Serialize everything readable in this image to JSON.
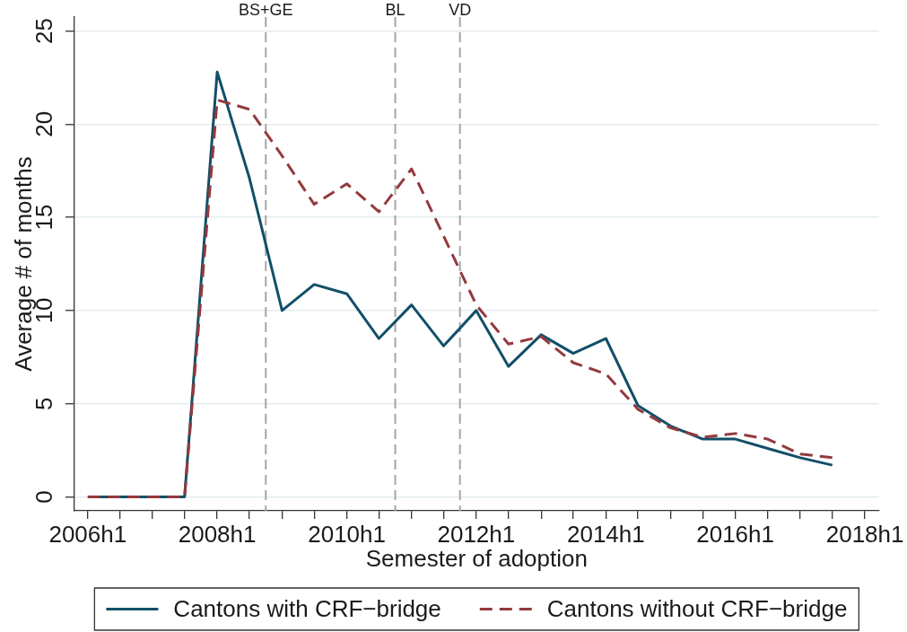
{
  "chart_data": {
    "type": "line",
    "xlabel": "Semester of adoption",
    "ylabel": "Average # of months",
    "x": [
      "2006-01",
      "2006-07",
      "2007-01",
      "2007-07",
      "2008-01",
      "2008-07",
      "2009-01",
      "2009-07",
      "2010-01",
      "2010-07",
      "2011-01",
      "2011-07",
      "2012-01",
      "2012-07",
      "2013-01",
      "2013-07",
      "2014-01",
      "2014-07",
      "2015-01",
      "2015-07",
      "2016-01",
      "2016-07",
      "2017-01",
      "2017-07"
    ],
    "series": [
      {
        "name": "Cantons with CRF−bridge",
        "color": "#124f68",
        "line_style": "solid",
        "values": [
          0,
          0,
          0,
          0,
          22.8,
          17.1,
          10.0,
          11.4,
          10.9,
          8.5,
          10.3,
          8.1,
          10.0,
          7.0,
          8.7,
          7.7,
          8.5,
          4.9,
          3.8,
          3.1,
          3.1,
          2.6,
          2.1,
          1.7
        ]
      },
      {
        "name": "Cantons without CRF−bridge",
        "color": "#933a3e",
        "line_style": "dashed",
        "values": [
          0,
          0,
          0,
          0,
          21.3,
          20.8,
          18.3,
          15.7,
          16.8,
          15.3,
          17.6,
          14.0,
          10.3,
          8.2,
          8.6,
          7.2,
          6.6,
          4.7,
          3.7,
          3.2,
          3.4,
          3.1,
          2.3,
          2.1
        ]
      }
    ],
    "xlim": [
      "2005-10-18",
      "2018-03-21"
    ],
    "ylim": [
      -0.75,
      25.75
    ],
    "xticks": [
      {
        "value": "2006-01",
        "label": "2006h1"
      },
      {
        "value": "2006-07",
        "label": null
      },
      {
        "value": "2007-01",
        "label": null
      },
      {
        "value": "2007-07",
        "label": null
      },
      {
        "value": "2008-01",
        "label": "2008h1"
      },
      {
        "value": "2008-07",
        "label": null
      },
      {
        "value": "2009-01",
        "label": null
      },
      {
        "value": "2009-07",
        "label": null
      },
      {
        "value": "2010-01",
        "label": "2010h1"
      },
      {
        "value": "2010-07",
        "label": null
      },
      {
        "value": "2011-01",
        "label": null
      },
      {
        "value": "2011-07",
        "label": null
      },
      {
        "value": "2012-01",
        "label": "2012h1"
      },
      {
        "value": "2012-07",
        "label": null
      },
      {
        "value": "2013-01",
        "label": null
      },
      {
        "value": "2013-07",
        "label": null
      },
      {
        "value": "2014-01",
        "label": "2014h1"
      },
      {
        "value": "2014-07",
        "label": null
      },
      {
        "value": "2015-01",
        "label": null
      },
      {
        "value": "2015-07",
        "label": null
      },
      {
        "value": "2016-01",
        "label": "2016h1"
      },
      {
        "value": "2016-07",
        "label": null
      },
      {
        "value": "2017-01",
        "label": null
      },
      {
        "value": "2017-07",
        "label": null
      },
      {
        "value": "2018-01",
        "label": "2018h1"
      }
    ],
    "yticks": [
      0,
      5,
      10,
      15,
      20,
      25
    ],
    "ref_lines": [
      {
        "axis": "x",
        "value": "2008-10",
        "label": "BS+GE",
        "color": "#a6a6a6",
        "line_style": "dashed"
      },
      {
        "axis": "x",
        "value": "2010-10",
        "label": "BL",
        "color": "#a6a6a6",
        "line_style": "dashed"
      },
      {
        "axis": "x",
        "value": "2011-10",
        "label": "VD",
        "color": "#a6a6a6",
        "line_style": "dashed"
      }
    ],
    "grid": "y",
    "legend": "bottom",
    "marker": "none"
  }
}
